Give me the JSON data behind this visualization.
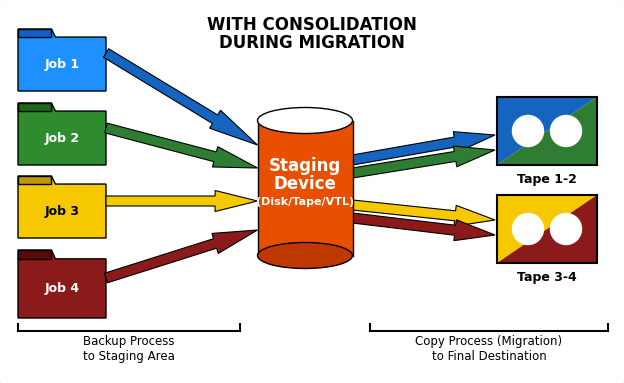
{
  "title_line1": "WITH CONSOLIDATION",
  "title_line2": "DURING MIGRATION",
  "bg_color": "#ffffff",
  "border_color": "#aaaaaa",
  "folder_colors": [
    "#1E90FF",
    "#2E8B2E",
    "#F5C800",
    "#8B1A1A"
  ],
  "folder_dark_colors": [
    "#1060CC",
    "#1A6A1A",
    "#C09A00",
    "#5A0A0A"
  ],
  "folder_labels": [
    "Job 1",
    "Job 2",
    "Job 3",
    "Job 4"
  ],
  "folder_label_colors": [
    "white",
    "white",
    "black",
    "white"
  ],
  "arrow_colors_left": [
    "#1565C0",
    "#2E7D32",
    "#F5C800",
    "#8B1A1A"
  ],
  "arrow_colors_right": [
    "#1565C0",
    "#2E7D32",
    "#F5C800",
    "#8B1A1A"
  ],
  "staging_color": "#E85000",
  "staging_color_dark": "#BF3800",
  "staging_label1": "Staging",
  "staging_label2": "Device",
  "staging_label3": "(Disk/Tape/VTL)",
  "tape12_color_topleft": "#1565C0",
  "tape12_color_botright": "#2E7D32",
  "tape34_color_topleft": "#F5C800",
  "tape34_color_botright": "#8B1A1A",
  "tape12_label": "Tape 1-2",
  "tape34_label": "Tape 3-4",
  "bracket_label_left": "Backup Process\nto Staging Area",
  "bracket_label_right": "Copy Process (Migration)\nto Final Destination"
}
